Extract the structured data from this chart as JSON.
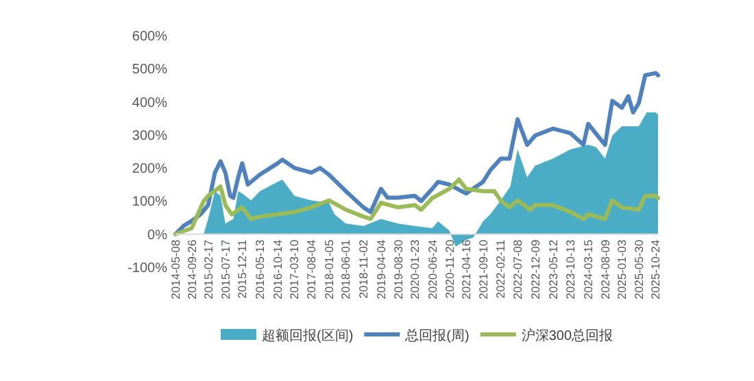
{
  "chart_data": {
    "type": "line",
    "legend": "bottom",
    "grid": false,
    "xlim": [
      "2014-05-08",
      "2025-11-14"
    ],
    "xticks": [
      {
        "value": "2014-05-08",
        "label": "2014-05-08"
      },
      {
        "value": "2014-09-26",
        "label": "2014-09-26"
      },
      {
        "value": "2015-02-17",
        "label": "2015-02-17"
      },
      {
        "value": "2015-07-17",
        "label": "2015-07-17"
      },
      {
        "value": "2015-12-11",
        "label": "2015-12-11"
      },
      {
        "value": "2016-05-13",
        "label": "2016-05-13"
      },
      {
        "value": "2016-10-14",
        "label": "2016-10-14"
      },
      {
        "value": "2017-03-10",
        "label": "2017-03-10"
      },
      {
        "value": "2017-08-04",
        "label": "2017-08-04"
      },
      {
        "value": "2018-01-05",
        "label": "2018-01-05"
      },
      {
        "value": "2018-06-01",
        "label": "2018-06-01"
      },
      {
        "value": "2018-11-02",
        "label": "2018-11-02"
      },
      {
        "value": "2019-04-04",
        "label": "2019-04-04"
      },
      {
        "value": "2019-08-30",
        "label": "2019-08-30"
      },
      {
        "value": "2020-01-23",
        "label": "2020-01-23"
      },
      {
        "value": "2020-06-24",
        "label": "2020-06-24"
      },
      {
        "value": "2020-11-20",
        "label": "2020-11-20"
      },
      {
        "value": "2021-04-16",
        "label": "2021-04-16"
      },
      {
        "value": "2021-09-10",
        "label": "2021-09-10"
      },
      {
        "value": "2022-02-11",
        "label": "2022-02-11"
      },
      {
        "value": "2022-07-08",
        "label": "2022-07-08"
      },
      {
        "value": "2022-12-09",
        "label": "2022-12-09"
      },
      {
        "value": "2023-05-12",
        "label": "2023-05-12"
      },
      {
        "value": "2023-10-13",
        "label": "2023-10-13"
      },
      {
        "value": "2024-03-15",
        "label": "2024-03-15"
      },
      {
        "value": "2024-08-09",
        "label": "2024-08-09"
      },
      {
        "value": "2025-01-03",
        "label": "2025-01-03"
      },
      {
        "value": "2025-05-30",
        "label": "2025-05-30"
      },
      {
        "value": "2025-10-24",
        "label": "2025-10-24"
      }
    ],
    "ylim": [
      -100,
      600
    ],
    "yticks": [
      {
        "value": -100,
        "label": "-100%"
      },
      {
        "value": 0,
        "label": "0%"
      },
      {
        "value": 100,
        "label": "100%"
      },
      {
        "value": 200,
        "label": "200%"
      },
      {
        "value": 300,
        "label": "300%"
      },
      {
        "value": 400,
        "label": "400%"
      },
      {
        "value": 500,
        "label": "500%"
      },
      {
        "value": 600,
        "label": "600%"
      }
    ],
    "series": [
      {
        "name": "超额回报(区间)",
        "type": "area",
        "color": "#4bacc6",
        "x": [
          "2014-05-08",
          "2014-09-26",
          "2015-01-09",
          "2015-02-17",
          "2015-04-17",
          "2015-06-05",
          "2015-07-17",
          "2015-09-25",
          "2015-11-06",
          "2015-12-11",
          "2016-02-26",
          "2016-05-13",
          "2016-10-14",
          "2016-11-25",
          "2017-03-10",
          "2017-08-04",
          "2018-01-05",
          "2018-02-23",
          "2018-06-01",
          "2018-11-02",
          "2019-04-04",
          "2019-08-30",
          "2020-01-23",
          "2020-06-24",
          "2020-08-14",
          "2020-11-20",
          "2021-01-15",
          "2021-04-16",
          "2021-06-18",
          "2021-09-10",
          "2021-11-12",
          "2022-02-11",
          "2022-05-06",
          "2022-07-08",
          "2022-09-30",
          "2022-12-09",
          "2023-05-12",
          "2023-10-13",
          "2024-03-15",
          "2024-05-24",
          "2024-08-09",
          "2024-10-11",
          "2025-01-03",
          "2025-05-30",
          "2025-08-08",
          "2025-10-24",
          "2025-11-14"
        ],
        "values": [
          0,
          0,
          0,
          46,
          130,
          116,
          32,
          46,
          130,
          123,
          102,
          130,
          158,
          165,
          116,
          102,
          95,
          60,
          32,
          25,
          46,
          32,
          25,
          18,
          39,
          11,
          -38,
          -17,
          -10,
          39,
          60,
          102,
          144,
          256,
          172,
          207,
          228,
          256,
          270,
          263,
          228,
          298,
          326,
          326,
          368,
          368,
          361
        ]
      },
      {
        "name": "总回报(周)",
        "color": "#4f81bd",
        "x": [
          "2014-05-08",
          "2014-07-18",
          "2014-09-26",
          "2014-12-12",
          "2015-02-17",
          "2015-04-17",
          "2015-06-05",
          "2015-07-17",
          "2015-08-28",
          "2015-09-25",
          "2015-11-06",
          "2015-12-11",
          "2016-01-29",
          "2016-05-13",
          "2016-10-14",
          "2016-11-25",
          "2017-03-10",
          "2017-08-04",
          "2017-10-20",
          "2018-01-05",
          "2018-06-01",
          "2018-11-02",
          "2019-01-04",
          "2019-04-04",
          "2019-05-31",
          "2019-08-30",
          "2020-01-23",
          "2020-03-20",
          "2020-06-24",
          "2020-08-14",
          "2020-11-20",
          "2021-04-16",
          "2021-09-10",
          "2021-11-12",
          "2022-02-11",
          "2022-04-29",
          "2022-07-08",
          "2022-09-30",
          "2022-12-09",
          "2023-05-12",
          "2023-10-13",
          "2024-02-02",
          "2024-03-15",
          "2024-08-09",
          "2024-10-11",
          "2025-01-03",
          "2025-02-28",
          "2025-04-11",
          "2025-05-30",
          "2025-07-25",
          "2025-10-24",
          "2025-11-14"
        ],
        "values": [
          0,
          25,
          40,
          60,
          88,
          186,
          220,
          186,
          116,
          110,
          172,
          214,
          150,
          180,
          214,
          225,
          200,
          186,
          200,
          180,
          130,
          81,
          67,
          137,
          110,
          110,
          116,
          100,
          137,
          158,
          150,
          123,
          158,
          193,
          228,
          228,
          347,
          270,
          298,
          319,
          305,
          270,
          333,
          270,
          403,
          382,
          417,
          368,
          396,
          480,
          487,
          480
        ]
      },
      {
        "name": "沪深300总回报",
        "color": "#9bbb59",
        "x": [
          "2014-05-08",
          "2014-09-26",
          "2015-01-09",
          "2015-02-17",
          "2015-06-05",
          "2015-07-17",
          "2015-09-11",
          "2015-12-11",
          "2016-02-26",
          "2016-05-13",
          "2016-10-14",
          "2017-03-10",
          "2017-08-04",
          "2018-01-05",
          "2018-06-01",
          "2018-11-02",
          "2019-01-04",
          "2019-04-04",
          "2019-08-30",
          "2020-01-23",
          "2020-03-20",
          "2020-06-24",
          "2020-11-20",
          "2021-02-12",
          "2021-04-16",
          "2021-09-10",
          "2021-12-17",
          "2022-02-11",
          "2022-04-29",
          "2022-07-08",
          "2022-10-28",
          "2022-12-09",
          "2023-05-12",
          "2023-10-13",
          "2024-02-02",
          "2024-03-15",
          "2024-08-09",
          "2024-10-11",
          "2025-01-03",
          "2025-05-30",
          "2025-07-25",
          "2025-10-24",
          "2025-11-14"
        ],
        "values": [
          0,
          18,
          100,
          116,
          144,
          88,
          60,
          81,
          46,
          53,
          60,
          67,
          81,
          102,
          74,
          53,
          46,
          95,
          81,
          88,
          74,
          109,
          137,
          165,
          137,
          130,
          130,
          102,
          81,
          102,
          74,
          88,
          88,
          67,
          46,
          60,
          46,
          102,
          81,
          74,
          116,
          116,
          109
        ]
      }
    ]
  }
}
